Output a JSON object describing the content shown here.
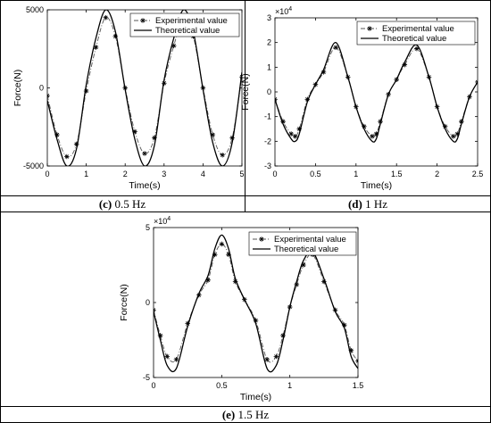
{
  "panels": [
    {
      "caption_letter": "(c)",
      "caption_rest": " 0.5 Hz",
      "chart_data": {
        "type": "line",
        "xlabel": "Time(s)",
        "ylabel": "Force(N)",
        "xlim": [
          0,
          5
        ],
        "ylim": [
          -5000,
          5000
        ],
        "xticks": [
          0,
          1,
          2,
          3,
          4,
          5
        ],
        "xtick_labels": [
          "0",
          "1",
          "2",
          "3",
          "4",
          "5"
        ],
        "yticks": [
          -5000,
          0,
          5000
        ],
        "ytick_labels": [
          "-5000",
          "0",
          "5000"
        ],
        "exponent_label": "",
        "legend_position": "top-center",
        "series": [
          {
            "name": "Experimental value",
            "style": "dash-dot with asterisk markers",
            "x": [
              0,
              0.25,
              0.5,
              0.75,
              1.0,
              1.25,
              1.5,
              1.75,
              2.0,
              2.25,
              2.5,
              2.75,
              3.0,
              3.25,
              3.5,
              3.75,
              4.0,
              4.25,
              4.5,
              4.75,
              5.0
            ],
            "y": [
              -500,
              -3000,
              -4400,
              -3600,
              -200,
              2600,
              4500,
              3300,
              0,
              -2800,
              -4200,
              -3200,
              300,
              2700,
              4500,
              3300,
              0,
              -3000,
              -4300,
              -3200,
              700
            ]
          },
          {
            "name": "Theoretical value",
            "style": "solid",
            "x": [
              0,
              0.25,
              0.5,
              0.75,
              1.0,
              1.25,
              1.5,
              1.75,
              2.0,
              2.25,
              2.5,
              2.75,
              3.0,
              3.25,
              3.5,
              3.75,
              4.0,
              4.25,
              4.5,
              4.75,
              5.0
            ],
            "y": [
              -800,
              -3300,
              -5000,
              -3900,
              200,
              3200,
              5000,
              3600,
              -100,
              -3300,
              -5000,
              -3700,
              500,
              3200,
              5000,
              3600,
              -100,
              -3500,
              -5000,
              -3500,
              1000
            ]
          }
        ]
      }
    },
    {
      "caption_letter": "(d)",
      "caption_rest": " 1 Hz",
      "chart_data": {
        "type": "line",
        "xlabel": "Time(s)",
        "ylabel": "Force(N)",
        "xlim": [
          0,
          2.5
        ],
        "ylim": [
          -3,
          3
        ],
        "xticks": [
          0,
          0.5,
          1,
          1.5,
          2,
          2.5
        ],
        "xtick_labels": [
          "0",
          "0.5",
          "1",
          "1.5",
          "2",
          "2.5"
        ],
        "yticks": [
          -3,
          -2,
          -1,
          0,
          1,
          2,
          3
        ],
        "ytick_labels": [
          "-3",
          "-2",
          "-1",
          "0",
          "1",
          "2",
          "3"
        ],
        "exponent_label": "×10",
        "exponent_power": "4",
        "legend_position": "top-right",
        "series": [
          {
            "name": "Experimental value",
            "style": "dash-dot with asterisk markers",
            "x": [
              0,
              0.1,
              0.2,
              0.25,
              0.3,
              0.4,
              0.5,
              0.6,
              0.75,
              0.9,
              1.0,
              1.1,
              1.2,
              1.25,
              1.3,
              1.4,
              1.5,
              1.6,
              1.75,
              1.9,
              2.0,
              2.1,
              2.2,
              2.25,
              2.3,
              2.4,
              2.5
            ],
            "y": [
              -0.3,
              -1.2,
              -1.7,
              -1.8,
              -1.5,
              -0.3,
              0.3,
              0.8,
              1.8,
              0.6,
              -0.6,
              -1.4,
              -1.8,
              -1.7,
              -1.2,
              -0.1,
              0.5,
              1.1,
              1.75,
              0.6,
              -0.6,
              -1.4,
              -1.8,
              -1.7,
              -1.2,
              -0.2,
              0.4
            ]
          },
          {
            "name": "Theoretical value",
            "style": "solid",
            "x": [
              0,
              0.1,
              0.2,
              0.25,
              0.3,
              0.4,
              0.5,
              0.6,
              0.75,
              0.9,
              1.0,
              1.1,
              1.2,
              1.25,
              1.3,
              1.4,
              1.5,
              1.6,
              1.75,
              1.9,
              2.0,
              2.1,
              2.2,
              2.25,
              2.3,
              2.4,
              2.5
            ],
            "y": [
              -0.3,
              -1.3,
              -1.9,
              -2.0,
              -1.7,
              -0.4,
              0.3,
              0.9,
              2.0,
              0.6,
              -0.6,
              -1.5,
              -2.0,
              -1.9,
              -1.3,
              -0.1,
              0.5,
              1.2,
              1.9,
              0.6,
              -0.6,
              -1.5,
              -2.0,
              -1.9,
              -1.3,
              -0.2,
              0.4
            ]
          }
        ]
      }
    },
    {
      "caption_letter": "(e)",
      "caption_rest": " 1.5 Hz",
      "chart_data": {
        "type": "line",
        "xlabel": "Time(s)",
        "ylabel": "Force(N)",
        "xlim": [
          0,
          1.5
        ],
        "ylim": [
          -5,
          5
        ],
        "xticks": [
          0,
          0.5,
          1,
          1.5
        ],
        "xtick_labels": [
          "0",
          "0.5",
          "1",
          "1.5"
        ],
        "yticks": [
          -5,
          0,
          5
        ],
        "ytick_labels": [
          "-5",
          "0",
          "5"
        ],
        "exponent_label": "×10",
        "exponent_power": "4",
        "legend_position": "top-right",
        "series": [
          {
            "name": "Experimental value",
            "style": "dash-dot with asterisk markers",
            "x": [
              0,
              0.05,
              0.1,
              0.167,
              0.25,
              0.333,
              0.4,
              0.45,
              0.5,
              0.55,
              0.6,
              0.667,
              0.75,
              0.833,
              0.9,
              0.95,
              1.0,
              1.05,
              1.1,
              1.167,
              1.25,
              1.333,
              1.4,
              1.45,
              1.5
            ],
            "y": [
              -0.5,
              -2.2,
              -3.6,
              -3.8,
              -1.4,
              0.5,
              1.5,
              3.2,
              3.9,
              3.2,
              1.4,
              0.2,
              -1.2,
              -3.8,
              -3.6,
              -2.2,
              -0.3,
              1.2,
              2.5,
              3.2,
              1.4,
              -0.5,
              -1.5,
              -3.2,
              -3.9
            ]
          },
          {
            "name": "Theoretical value",
            "style": "solid",
            "x": [
              0,
              0.05,
              0.1,
              0.167,
              0.25,
              0.333,
              0.4,
              0.45,
              0.5,
              0.55,
              0.6,
              0.667,
              0.75,
              0.833,
              0.9,
              0.95,
              1.0,
              1.05,
              1.1,
              1.167,
              1.25,
              1.333,
              1.4,
              1.45,
              1.5
            ],
            "y": [
              -0.6,
              -2.5,
              -4.2,
              -4.4,
              -1.6,
              0.6,
              1.8,
              3.6,
              4.5,
              3.6,
              1.6,
              0.2,
              -1.4,
              -4.4,
              -4.2,
              -2.5,
              -0.3,
              1.4,
              2.8,
              3.4,
              1.6,
              -0.6,
              -1.7,
              -3.6,
              -4.4
            ]
          }
        ]
      }
    }
  ]
}
